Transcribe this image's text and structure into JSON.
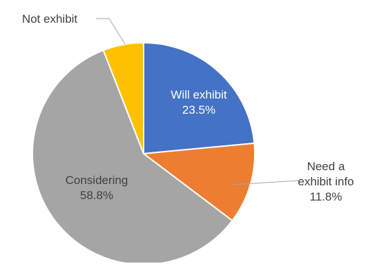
{
  "chart_data": {
    "type": "pie",
    "title": "",
    "show_values": true,
    "legend": "none",
    "slices": [
      {
        "label": "Will exhibit",
        "value": 23.5,
        "value_label": "23.5%",
        "color": "#4472C4",
        "label_position": "inside"
      },
      {
        "label": "Need a exhibit info",
        "label_lines": [
          "Need a",
          "exhibit info"
        ],
        "value": 11.8,
        "value_label": "11.8%",
        "color": "#ED7D31",
        "label_position": "outside"
      },
      {
        "label": "Considering",
        "value": 58.8,
        "value_label": "58.8%",
        "color": "#A5A5A5",
        "label_position": "inside"
      },
      {
        "label": "Not exhibit",
        "value": 5.9,
        "value_label": "",
        "color": "#FFC000",
        "label_position": "outside"
      }
    ]
  }
}
